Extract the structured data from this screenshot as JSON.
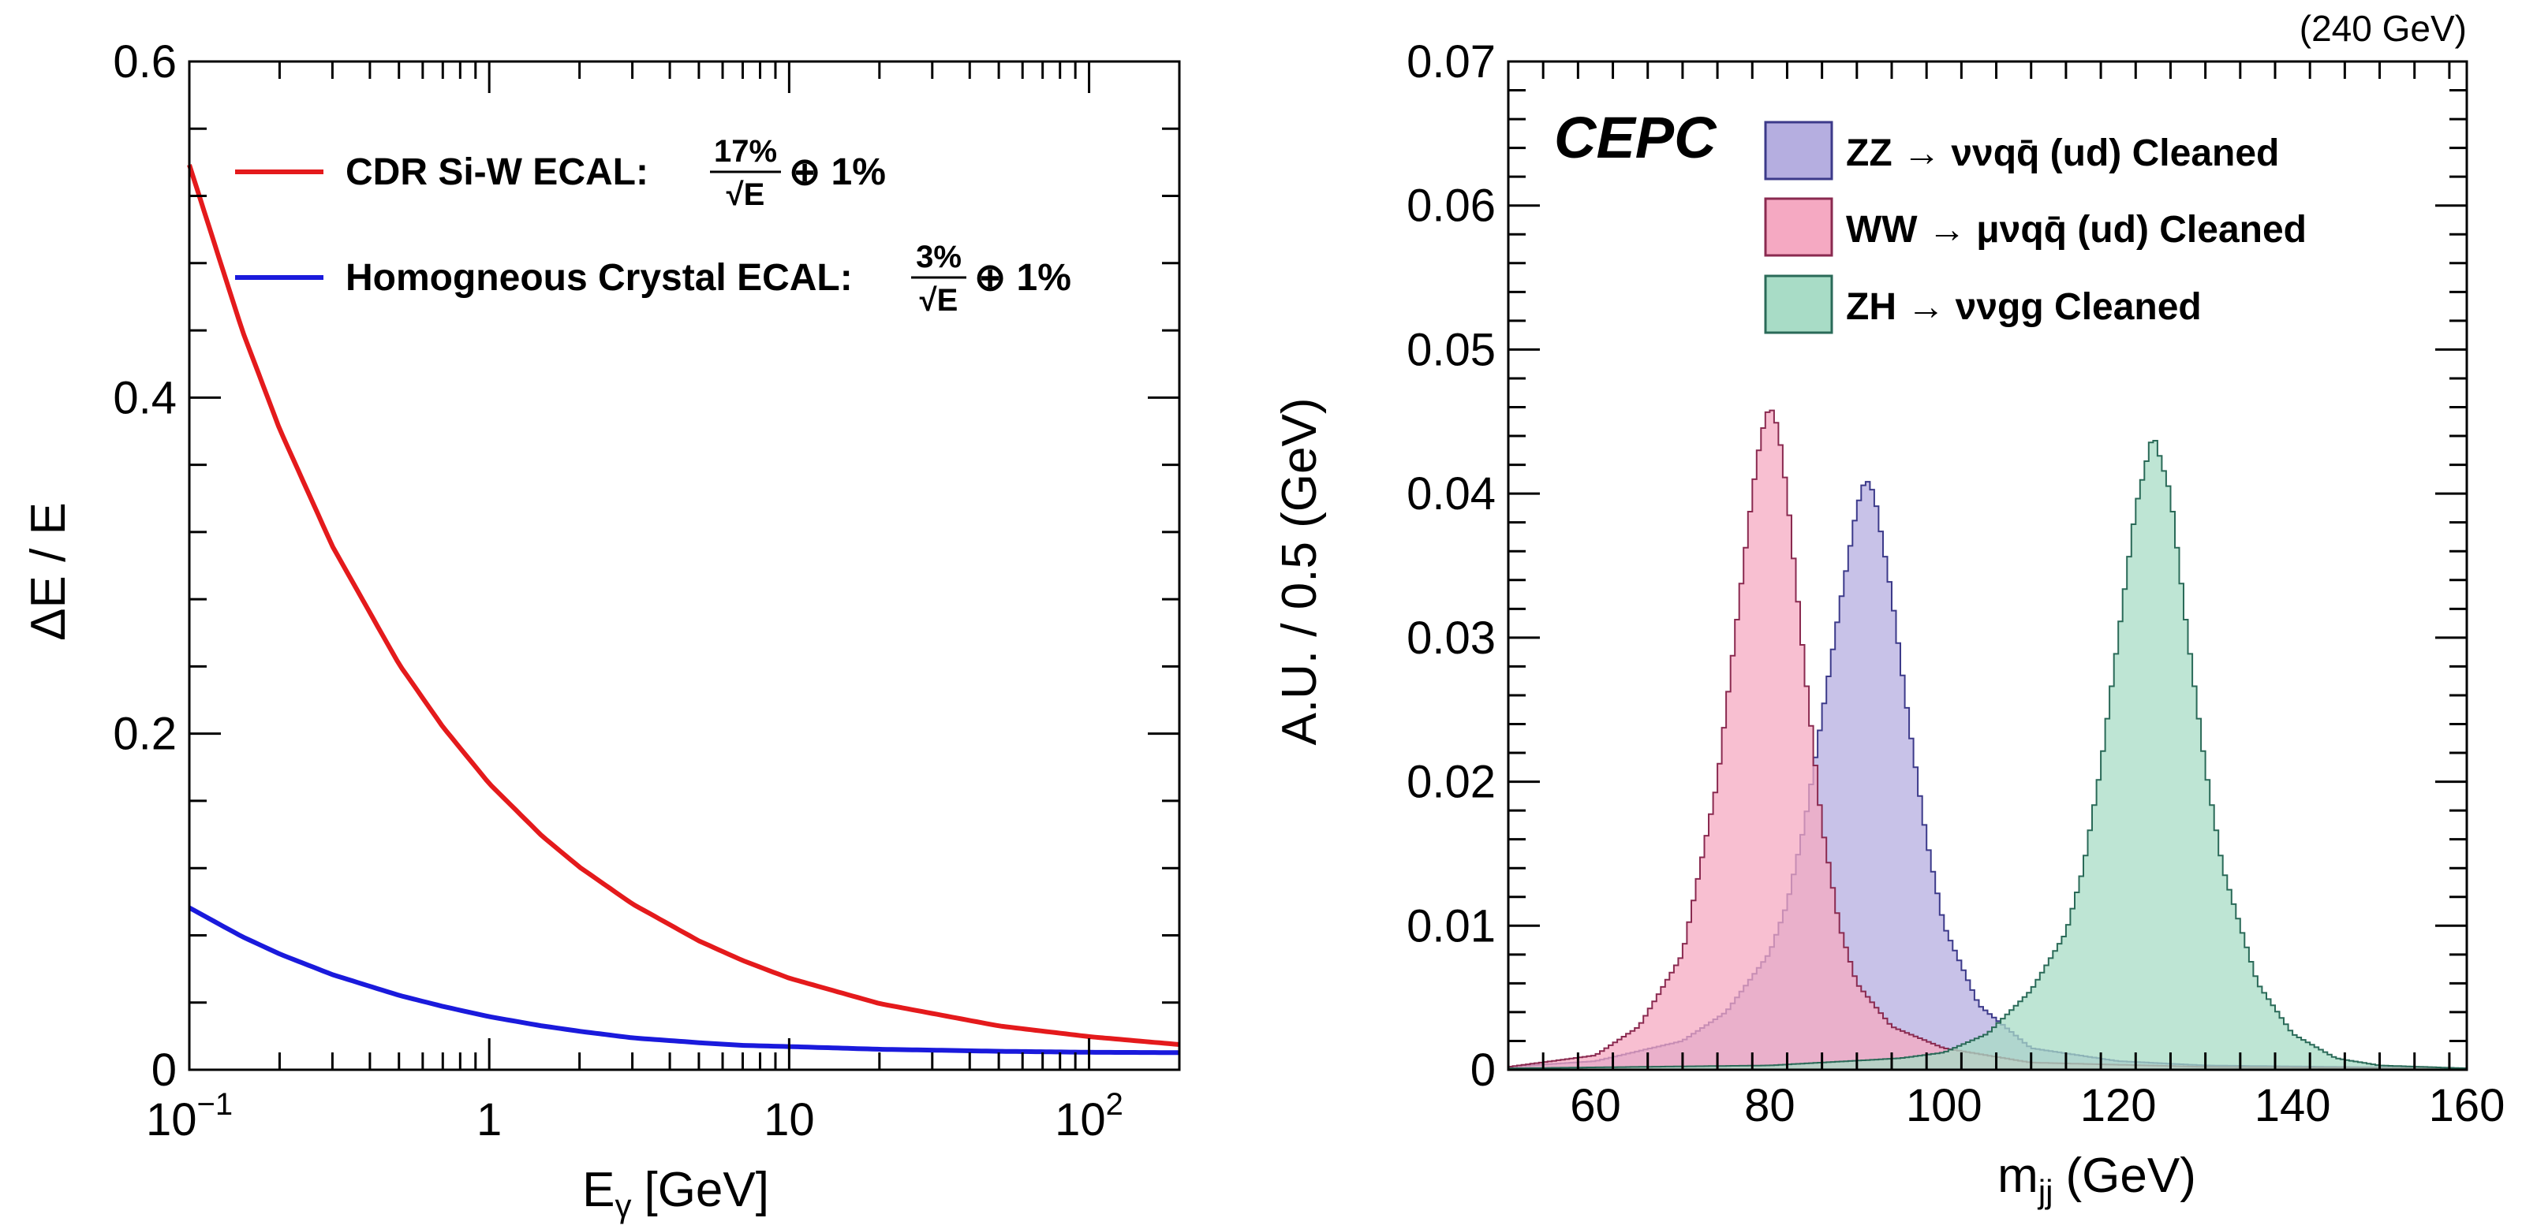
{
  "chart_data": [
    {
      "type": "line",
      "xscale": "log",
      "xlim": [
        0.1,
        200
      ],
      "ylim": [
        0,
        0.6
      ],
      "xlabel": "E",
      "xlabel_sub": "γ",
      "xlabel_unit": "[GeV]",
      "ylabel": "ΔE / E",
      "x_ticks": [
        {
          "value": 0.1,
          "base": "10",
          "exp": "−1"
        },
        {
          "value": 1,
          "label": "1"
        },
        {
          "value": 10,
          "label": "10"
        },
        {
          "value": 100,
          "base": "10",
          "exp": "2"
        }
      ],
      "y_ticks": [
        {
          "value": 0,
          "label": "0"
        },
        {
          "value": 0.2,
          "label": "0.2"
        },
        {
          "value": 0.4,
          "label": "0.4"
        },
        {
          "value": 0.6,
          "label": "0.6"
        }
      ],
      "legend_position": "top-left",
      "series": [
        {
          "legend_label": "CDR Si-W ECAL:",
          "numerator": "17%",
          "denominator": "√E",
          "suffix": "⊕ 1%",
          "color": "#e41a1c",
          "x": [
            0.1,
            0.15,
            0.2,
            0.3,
            0.5,
            0.7,
            1,
            1.5,
            2,
            3,
            5,
            7,
            10,
            20,
            50,
            100,
            200
          ],
          "y": [
            0.5385,
            0.4401,
            0.3813,
            0.3115,
            0.2414,
            0.2041,
            0.1703,
            0.1391,
            0.1206,
            0.0987,
            0.0767,
            0.065,
            0.0545,
            0.0394,
            0.0261,
            0.0197,
            0.015
          ]
        },
        {
          "legend_label": "Homogneous Crystal ECAL:",
          "numerator": "3%",
          "denominator": "√E",
          "suffix": "⊕ 1%",
          "color": "#1a1adc",
          "x": [
            0.1,
            0.15,
            0.2,
            0.3,
            0.5,
            0.7,
            1,
            1.5,
            2,
            3,
            5,
            7,
            10,
            20,
            50,
            100,
            200
          ],
          "y": [
            0.0964,
            0.0792,
            0.0689,
            0.0566,
            0.0443,
            0.0377,
            0.0316,
            0.0261,
            0.0229,
            0.019,
            0.0161,
            0.0145,
            0.0138,
            0.0122,
            0.011,
            0.0104,
            0.0102
          ]
        }
      ]
    },
    {
      "type": "area",
      "xlim": [
        50,
        160
      ],
      "ylim": [
        0,
        0.07
      ],
      "bin_width": 0.5,
      "xlabel": "m",
      "xlabel_sub": "jj",
      "xlabel_unit": "(GeV)",
      "ylabel": "A.U. / 0.5 (GeV)",
      "energy_label": "(240 GeV)",
      "experiment_label": "CEPC",
      "x_ticks": [
        60,
        80,
        100,
        120,
        140,
        160
      ],
      "y_ticks": [
        {
          "value": 0,
          "label": "0"
        },
        {
          "value": 0.01,
          "label": "0.01"
        },
        {
          "value": 0.02,
          "label": "0.02"
        },
        {
          "value": 0.03,
          "label": "0.03"
        },
        {
          "value": 0.04,
          "label": "0.04"
        },
        {
          "value": 0.05,
          "label": "0.05"
        },
        {
          "value": 0.06,
          "label": "0.06"
        },
        {
          "value": 0.07,
          "label": "0.07"
        }
      ],
      "legend_position": "top-right",
      "series": [
        {
          "legend_label": "ZZ → ννqq̄ (ud) Cleaned",
          "fill": "#b5aee0",
          "stroke": "#3c3a8a",
          "x": [
            50,
            60,
            70,
            75,
            80,
            82,
            84,
            86,
            88,
            90,
            91,
            92,
            94,
            96,
            98,
            100,
            104,
            110,
            120,
            130,
            145,
            160
          ],
          "y": [
            0.0002,
            0.0006,
            0.002,
            0.004,
            0.0081,
            0.0115,
            0.017,
            0.0245,
            0.032,
            0.039,
            0.0411,
            0.04,
            0.033,
            0.024,
            0.016,
            0.01,
            0.0045,
            0.0015,
            0.0006,
            0.0003,
            0.0002,
            0.0001
          ]
        },
        {
          "legend_label": "WW → μνqq̄ (ud) Cleaned",
          "fill": "#f5a9c2",
          "stroke": "#8a2a50",
          "x": [
            50,
            60,
            65,
            70,
            74,
            76,
            78,
            79,
            80,
            81,
            82,
            84,
            86,
            88,
            90,
            94,
            100,
            110,
            130,
            160
          ],
          "y": [
            0.0002,
            0.001,
            0.003,
            0.008,
            0.02,
            0.03,
            0.04,
            0.044,
            0.0462,
            0.0445,
            0.04,
            0.028,
            0.017,
            0.01,
            0.006,
            0.003,
            0.0015,
            0.0005,
            0.0002,
            0.0001
          ]
        },
        {
          "legend_label": "ZH → ννgg Cleaned",
          "fill": "#a8dcc6",
          "stroke": "#2a6a58",
          "x": [
            50,
            80,
            95,
            100,
            105,
            110,
            114,
            116,
            118,
            120,
            122,
            124,
            126,
            128,
            130,
            132,
            136,
            140,
            145,
            150,
            160
          ],
          "y": [
            0.0001,
            0.0003,
            0.0008,
            0.0012,
            0.0025,
            0.0055,
            0.0095,
            0.014,
            0.021,
            0.03,
            0.039,
            0.0442,
            0.04,
            0.03,
            0.021,
            0.014,
            0.006,
            0.0025,
            0.0008,
            0.0003,
            0.0001
          ]
        }
      ]
    }
  ]
}
